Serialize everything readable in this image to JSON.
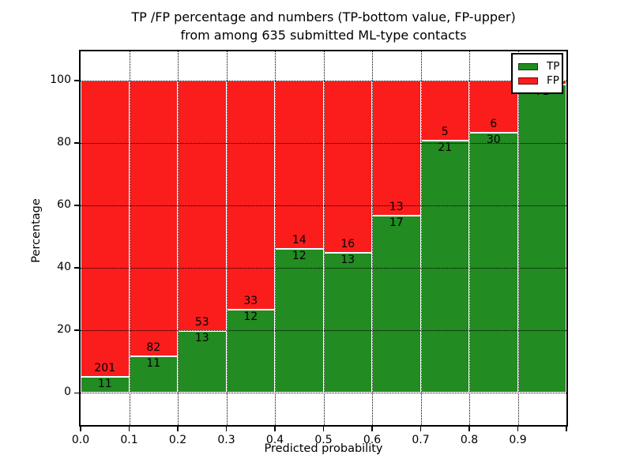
{
  "figure": {
    "title_line1": "TP /FP percentage and numbers (TP-bottom value, FP-upper)",
    "title_line2": "from among 635 submitted ML-type contacts",
    "xlabel": "Predicted probability",
    "ylabel": "Percentage"
  },
  "legend": {
    "position": "upper right",
    "items": [
      {
        "label": "TP",
        "color": "#228b22"
      },
      {
        "label": "FP",
        "color": "#fb1c1c"
      }
    ]
  },
  "chart_data": {
    "type": "bar",
    "stacked": true,
    "normalized_to_percent": true,
    "title": "TP /FP percentage and numbers (TP-bottom value, FP-upper) from among 635 submitted ML-type contacts",
    "xlabel": "Predicted probability",
    "ylabel": "Percentage",
    "total_submitted": 635,
    "xlim": [
      0.0,
      1.0
    ],
    "ylim": [
      -10,
      110
    ],
    "grid": true,
    "legend_position": "upper right",
    "x_tick_labels": [
      "0.0",
      "0.1",
      "0.2",
      "0.3",
      "0.4",
      "0.5",
      "0.6",
      "0.7",
      "0.8",
      "0.9"
    ],
    "y_ticks": [
      0,
      20,
      40,
      60,
      80,
      100
    ],
    "y_tick_labels": [
      "0",
      "20",
      "40",
      "60",
      "80",
      "100"
    ],
    "colors": {
      "tp": "#228b22",
      "fp": "#fb1c1c",
      "bar_edge": "#ffffff",
      "grid": "#000000"
    },
    "series": [
      {
        "name": "TP",
        "color": "#228b22",
        "counts": [
          11,
          11,
          13,
          12,
          12,
          13,
          17,
          21,
          30,
          71
        ]
      },
      {
        "name": "FP",
        "color": "#fb1c1c",
        "counts": [
          201,
          82,
          53,
          33,
          14,
          16,
          13,
          5,
          6,
          null
        ]
      }
    ],
    "bins": [
      {
        "x0": "0.0",
        "x1": "0.1",
        "tp": 11,
        "fp": 201,
        "tp_label": "11",
        "fp_label": "201",
        "tp_pct": 5.2
      },
      {
        "x0": "0.1",
        "x1": "0.2",
        "tp": 11,
        "fp": 82,
        "tp_label": "11",
        "fp_label": "82",
        "tp_pct": 11.8
      },
      {
        "x0": "0.2",
        "x1": "0.3",
        "tp": 13,
        "fp": 53,
        "tp_label": "13",
        "fp_label": "53",
        "tp_pct": 19.7
      },
      {
        "x0": "0.3",
        "x1": "0.4",
        "tp": 12,
        "fp": 33,
        "tp_label": "12",
        "fp_label": "33",
        "tp_pct": 26.7
      },
      {
        "x0": "0.4",
        "x1": "0.5",
        "tp": 12,
        "fp": 14,
        "tp_label": "12",
        "fp_label": "14",
        "tp_pct": 46.2
      },
      {
        "x0": "0.5",
        "x1": "0.6",
        "tp": 13,
        "fp": 16,
        "tp_label": "13",
        "fp_label": "16",
        "tp_pct": 44.8
      },
      {
        "x0": "0.6",
        "x1": "0.7",
        "tp": 17,
        "fp": 13,
        "tp_label": "17",
        "fp_label": "13",
        "tp_pct": 56.7
      },
      {
        "x0": "0.7",
        "x1": "0.8",
        "tp": 21,
        "fp": 5,
        "tp_label": "21",
        "fp_label": "5",
        "tp_pct": 80.8
      },
      {
        "x0": "0.8",
        "x1": "0.9",
        "tp": 30,
        "fp": 6,
        "tp_label": "30",
        "fp_label": "6",
        "tp_pct": 83.3
      },
      {
        "x0": "0.9",
        "x1": "1.0",
        "tp": 71,
        "fp": null,
        "tp_label": "71",
        "fp_label": "",
        "tp_pct": 98.6
      }
    ]
  }
}
